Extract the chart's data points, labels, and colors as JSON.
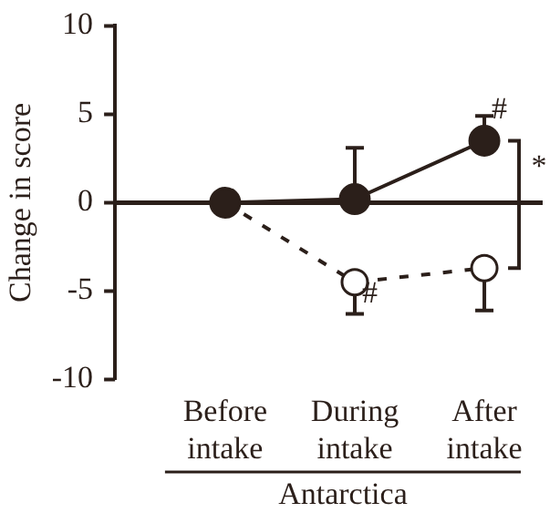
{
  "chart_data": {
    "type": "line",
    "ylabel": "Change in score",
    "xlabel": "Antarctica",
    "categories": [
      "Before intake",
      "During intake",
      "After intake"
    ],
    "series": [
      {
        "color": "#2b1f1a",
        "values": [
          0,
          0.2,
          3.5
        ],
        "errors": [
          null,
          [
            0.2,
            3.1
          ],
          [
            3.5,
            4.9
          ]
        ],
        "line_style": "solid"
      },
      {
        "color": "#2b1f1a",
        "colors": [
          "#ffffff",
          "#ffffff",
          "#ffffff"
        ],
        "values": [
          0,
          -4.5,
          -3.7
        ],
        "errors": [
          null,
          [
            -6.3,
            -4.5
          ],
          [
            -6.1,
            -3.7
          ]
        ],
        "line_style": "dashed"
      }
    ],
    "ylim": [
      -10,
      10
    ],
    "yticks": [
      -10,
      -5,
      0,
      5,
      10
    ],
    "annotations": [
      {
        "text": "#",
        "x": "After intake",
        "y": 4.9
      },
      {
        "text": "#",
        "x": "During intake",
        "y": -5.5
      },
      "*"
    ],
    "ref_lines": [
      {
        "axis": "y",
        "value": 0,
        "color": "#2b1f1a",
        "line_style": "solid"
      }
    ],
    "marker": "circle",
    "grid": false,
    "legend": false
  }
}
